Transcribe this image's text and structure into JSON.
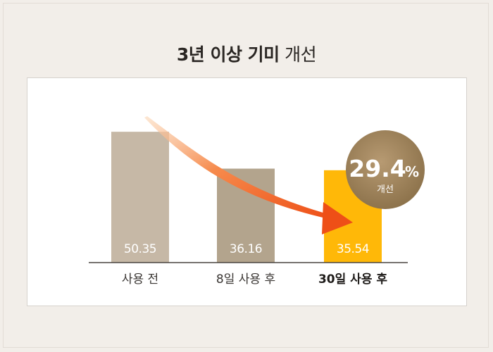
{
  "header": {
    "title_bold": "3년 이상 기미",
    "title_light": "개선"
  },
  "chart_data": {
    "type": "bar",
    "categories": [
      "사용 전",
      "8일 사용 후",
      "30일 사용 후"
    ],
    "values": [
      50.35,
      36.16,
      35.54
    ],
    "value_labels": [
      "50.35",
      "36.16",
      "35.54"
    ],
    "highlight_index": 2,
    "ylim": [
      0,
      55
    ],
    "colors": [
      "#c6b8a6",
      "#b3a48d",
      "#ffb808"
    ],
    "arrow_color": "#f05a22",
    "badge": {
      "value": "29.4",
      "unit": "%",
      "label": "개선",
      "color": "#9a7f58"
    }
  }
}
